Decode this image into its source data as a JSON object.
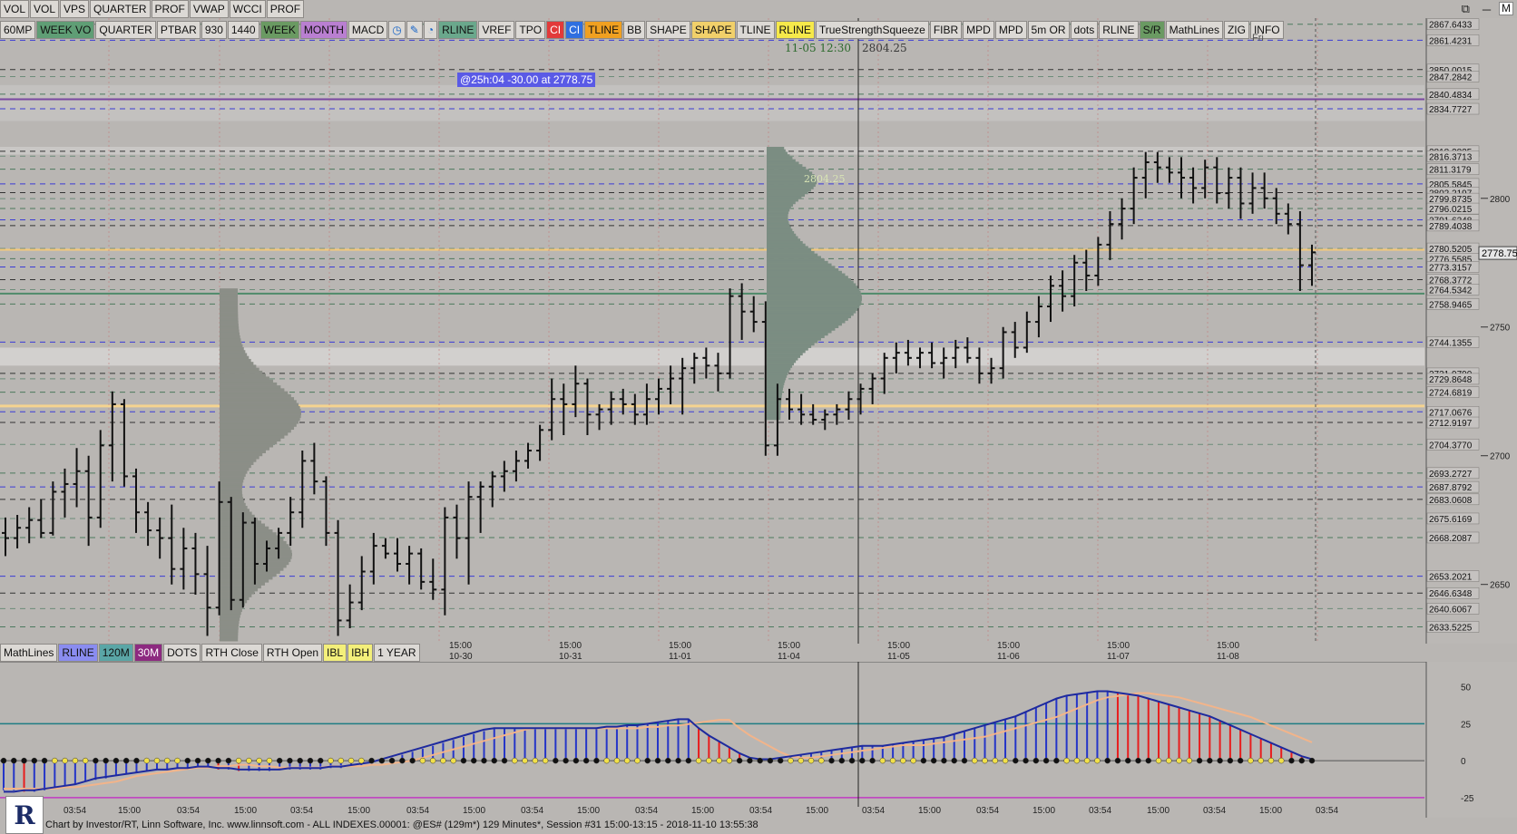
{
  "window_controls": [
    "⧉",
    "─",
    "✕"
  ],
  "toolbar1": [
    {
      "label": "VOL",
      "color": "#dcd9d5"
    },
    {
      "label": "VOL",
      "color": "#dcd9d5"
    },
    {
      "label": "VPS",
      "color": "#dcd9d5"
    },
    {
      "label": "QUARTER",
      "color": "#dcd9d5"
    },
    {
      "label": "PROF",
      "color": "#dcd9d5"
    },
    {
      "label": "VWAP",
      "color": "#dcd9d5"
    },
    {
      "label": "WCCI",
      "color": "#dcd9d5"
    },
    {
      "label": "PROF",
      "color": "#dcd9d5"
    }
  ],
  "toolbar2": [
    {
      "label": "60MP",
      "color": "#dcd9d5"
    },
    {
      "label": "WEEK VO",
      "color": "#5f9e75"
    },
    {
      "label": "QUARTER",
      "color": "#dcd9d5"
    },
    {
      "label": "PTBAR",
      "color": "#dcd9d5"
    },
    {
      "label": "930",
      "color": "#dcd9d5"
    },
    {
      "label": "1440",
      "color": "#dcd9d5"
    },
    {
      "label": "WEEK",
      "color": "#6a9a62"
    },
    {
      "label": "MONTH",
      "color": "#b97fd1"
    },
    {
      "label": "MACD",
      "color": "#dcd9d5"
    },
    {
      "label": "◷",
      "color": "#dcd9d5",
      "fg": "#1563c7"
    },
    {
      "label": "✎",
      "color": "#dcd9d5",
      "fg": "#1563c7"
    },
    {
      "label": "◔",
      "color": "#dcd9d5",
      "fg": "#1563c7"
    },
    {
      "label": "RLINE",
      "color": "#6aa88c"
    },
    {
      "label": "VREF",
      "color": "#dcd9d5"
    },
    {
      "label": "TPO",
      "color": "#dcd9d5"
    },
    {
      "label": "CI",
      "color": "#e23a3a",
      "fg": "#fff"
    },
    {
      "label": "CI",
      "color": "#2f6fe0",
      "fg": "#fff"
    },
    {
      "label": "TLINE",
      "color": "#f0a020"
    },
    {
      "label": "BB",
      "color": "#dcd9d5"
    },
    {
      "label": "SHAPE",
      "color": "#dcd9d5"
    },
    {
      "label": "SHAPE",
      "color": "#f1d06a"
    },
    {
      "label": "TLINE",
      "color": "#dcd9d5"
    },
    {
      "label": "RLINE",
      "color": "#f6e94a"
    },
    {
      "label": "TrueStrengthSqueeze",
      "color": "#dcd9d5"
    },
    {
      "label": "FIBR",
      "color": "#dcd9d5"
    },
    {
      "label": "MPD",
      "color": "#dcd9d5"
    },
    {
      "label": "MPD",
      "color": "#dcd9d5"
    },
    {
      "label": "5m OR",
      "color": "#dcd9d5"
    },
    {
      "label": "dots",
      "color": "#dcd9d5"
    },
    {
      "label": "RLINE",
      "color": "#dcd9d5"
    },
    {
      "label": "S/R",
      "color": "#6a9a62"
    },
    {
      "label": "MathLines",
      "color": "#dcd9d5"
    },
    {
      "label": "ZIG",
      "color": "#dcd9d5"
    },
    {
      "label": "INFO",
      "color": "#dcd9d5"
    }
  ],
  "toolbar3": [
    {
      "label": "MathLines",
      "color": "#dcd9d5"
    },
    {
      "label": "RLINE",
      "color": "#8a8cf0"
    },
    {
      "label": "120M",
      "color": "#5aa6a6"
    },
    {
      "label": "30M",
      "color": "#8d2a80",
      "fg": "#fff"
    },
    {
      "label": "DOTS",
      "color": "#dcd9d5"
    },
    {
      "label": "RTH Close",
      "color": "#dcd9d5"
    },
    {
      "label": "RTH Open",
      "color": "#dcd9d5"
    },
    {
      "label": "IBL",
      "color": "#f3ef7a"
    },
    {
      "label": "IBH",
      "color": "#f3ef7a"
    },
    {
      "label": "1 YEAR",
      "color": "#dcd9d5"
    }
  ],
  "cursor_stamp": {
    "date": "11-05 12:30",
    "price": "2804.25"
  },
  "profile_poc_label": "2804.25",
  "annotation": "@25h:04  -30.00 at 2778.75",
  "current_price": "2778.75",
  "day_label": "Fri",
  "pane_tags": [
    "M",
    "M"
  ],
  "footer": "Chart by Investor/RT, Linn Software, Inc. www.linnsoft.com - ALL INDEXES.00001: @ES# (129m*) 129 Minutes*, Session #31 15:00-13:15 - 2018-11-10 13:55:38",
  "logo_text": "R",
  "chart_data": [
    {
      "type": "candlestick",
      "title": "@ES# 129 Minutes",
      "y_axis_ticks": [
        2650,
        2700,
        2750,
        2800
      ],
      "ylim": [
        2627,
        2870
      ],
      "price_level_labels": [
        "2867.6433",
        "2861.4231",
        "2850.0015",
        "2847.2842",
        "2840.4834",
        "2834.7727",
        "2818.2825",
        "2816.3713",
        "2811.3179",
        "2805.5845",
        "2802.2197",
        "2799.8735",
        "2796.0215",
        "2791.6248",
        "2789.4038",
        "2780.5205",
        "2776.5585",
        "2773.3157",
        "2768.3772",
        "2764.5342",
        "2758.9465",
        "2744.1355",
        "2731.9790",
        "2729.8648",
        "2724.6819",
        "2717.0676",
        "2712.9197",
        "2704.3770",
        "2693.2727",
        "2687.8792",
        "2683.0608",
        "2675.6169",
        "2668.2087",
        "2653.2021",
        "2646.6348",
        "2640.6067",
        "2633.5225"
      ],
      "x_axis_labels": [
        {
          "time": "15:00",
          "date": "10-30"
        },
        {
          "time": "15:00",
          "date": "10-31"
        },
        {
          "time": "15:00",
          "date": "11-01"
        },
        {
          "time": "15:00",
          "date": "11-04"
        },
        {
          "time": "15:00",
          "date": "11-05"
        },
        {
          "time": "15:00",
          "date": "11-06"
        },
        {
          "time": "15:00",
          "date": "11-07"
        },
        {
          "time": "15:00",
          "date": "11-08"
        }
      ],
      "ohlc": [
        [
          2670,
          2676,
          2661,
          2668
        ],
        [
          2668,
          2677,
          2664,
          2672
        ],
        [
          2672,
          2680,
          2666,
          2675
        ],
        [
          2675,
          2683,
          2668,
          2670
        ],
        [
          2670,
          2690,
          2669,
          2686
        ],
        [
          2686,
          2695,
          2676,
          2689
        ],
        [
          2689,
          2703,
          2680,
          2694
        ],
        [
          2694,
          2700,
          2665,
          2676
        ],
        [
          2676,
          2710,
          2672,
          2704
        ],
        [
          2704,
          2725,
          2690,
          2720
        ],
        [
          2720,
          2722,
          2688,
          2692
        ],
        [
          2692,
          2695,
          2670,
          2678
        ],
        [
          2678,
          2682,
          2665,
          2671
        ],
        [
          2671,
          2676,
          2660,
          2668
        ],
        [
          2668,
          2681,
          2650,
          2656
        ],
        [
          2656,
          2672,
          2648,
          2664
        ],
        [
          2664,
          2670,
          2646,
          2654
        ],
        [
          2654,
          2665,
          2630,
          2641
        ],
        [
          2641,
          2690,
          2638,
          2682
        ],
        [
          2682,
          2684,
          2640,
          2644
        ],
        [
          2644,
          2678,
          2641,
          2674
        ],
        [
          2674,
          2676,
          2650,
          2658
        ],
        [
          2658,
          2667,
          2655,
          2664
        ],
        [
          2664,
          2672,
          2660,
          2670
        ],
        [
          2670,
          2684,
          2665,
          2678
        ],
        [
          2678,
          2702,
          2672,
          2698
        ],
        [
          2698,
          2705,
          2685,
          2690
        ],
        [
          2690,
          2692,
          2665,
          2670
        ],
        [
          2670,
          2675,
          2630,
          2636
        ],
        [
          2636,
          2650,
          2633,
          2643
        ],
        [
          2643,
          2661,
          2640,
          2655
        ],
        [
          2655,
          2670,
          2650,
          2665
        ],
        [
          2665,
          2668,
          2660,
          2662
        ],
        [
          2662,
          2668,
          2655,
          2658
        ],
        [
          2658,
          2665,
          2650,
          2662
        ],
        [
          2662,
          2664,
          2648,
          2651
        ],
        [
          2651,
          2660,
          2644,
          2648
        ],
        [
          2648,
          2680,
          2638,
          2676
        ],
        [
          2676,
          2681,
          2660,
          2668
        ],
        [
          2668,
          2690,
          2650,
          2684
        ],
        [
          2684,
          2690,
          2670,
          2688
        ],
        [
          2688,
          2694,
          2680,
          2692
        ],
        [
          2692,
          2698,
          2686,
          2694
        ],
        [
          2694,
          2702,
          2690,
          2698
        ],
        [
          2698,
          2705,
          2695,
          2702
        ],
        [
          2702,
          2712,
          2698,
          2710
        ],
        [
          2710,
          2730,
          2706,
          2722
        ],
        [
          2722,
          2728,
          2708,
          2720
        ],
        [
          2720,
          2735,
          2715,
          2728
        ],
        [
          2728,
          2730,
          2708,
          2716
        ],
        [
          2716,
          2720,
          2710,
          2718
        ],
        [
          2718,
          2725,
          2712,
          2722
        ],
        [
          2722,
          2726,
          2716,
          2720
        ],
        [
          2720,
          2724,
          2712,
          2716
        ],
        [
          2716,
          2728,
          2712,
          2722
        ],
        [
          2722,
          2730,
          2716,
          2726
        ],
        [
          2726,
          2735,
          2720,
          2730
        ],
        [
          2730,
          2738,
          2716,
          2734
        ],
        [
          2734,
          2740,
          2728,
          2738
        ],
        [
          2738,
          2742,
          2730,
          2735
        ],
        [
          2735,
          2740,
          2725,
          2732
        ],
        [
          2732,
          2765,
          2730,
          2762
        ],
        [
          2762,
          2767,
          2745,
          2756
        ],
        [
          2756,
          2762,
          2748,
          2752
        ],
        [
          2752,
          2760,
          2700,
          2704
        ],
        [
          2704,
          2728,
          2700,
          2722
        ],
        [
          2722,
          2726,
          2714,
          2718
        ],
        [
          2718,
          2724,
          2712,
          2716
        ],
        [
          2716,
          2720,
          2712,
          2714
        ],
        [
          2714,
          2718,
          2710,
          2716
        ],
        [
          2716,
          2720,
          2712,
          2718
        ],
        [
          2718,
          2725,
          2714,
          2722
        ],
        [
          2722,
          2728,
          2716,
          2726
        ],
        [
          2726,
          2732,
          2720,
          2730
        ],
        [
          2730,
          2740,
          2724,
          2738
        ],
        [
          2738,
          2744,
          2732,
          2740
        ],
        [
          2740,
          2745,
          2735,
          2738
        ],
        [
          2738,
          2742,
          2734,
          2740
        ],
        [
          2740,
          2744,
          2734,
          2736
        ],
        [
          2736,
          2742,
          2730,
          2738
        ],
        [
          2738,
          2745,
          2734,
          2742
        ],
        [
          2742,
          2746,
          2736,
          2738
        ],
        [
          2738,
          2742,
          2728,
          2732
        ],
        [
          2732,
          2738,
          2728,
          2734
        ],
        [
          2734,
          2750,
          2730,
          2748
        ],
        [
          2748,
          2752,
          2738,
          2742
        ],
        [
          2742,
          2756,
          2740,
          2752
        ],
        [
          2752,
          2762,
          2746,
          2758
        ],
        [
          2758,
          2770,
          2752,
          2766
        ],
        [
          2766,
          2772,
          2756,
          2762
        ],
        [
          2762,
          2778,
          2758,
          2775
        ],
        [
          2775,
          2780,
          2764,
          2770
        ],
        [
          2770,
          2785,
          2766,
          2782
        ],
        [
          2782,
          2795,
          2776,
          2790
        ],
        [
          2790,
          2800,
          2784,
          2796
        ],
        [
          2796,
          2812,
          2790,
          2808
        ],
        [
          2808,
          2818,
          2800,
          2814
        ],
        [
          2814,
          2818,
          2806,
          2812
        ],
        [
          2812,
          2816,
          2806,
          2810
        ],
        [
          2810,
          2816,
          2800,
          2808
        ],
        [
          2808,
          2812,
          2798,
          2804
        ],
        [
          2804,
          2815,
          2800,
          2812
        ],
        [
          2812,
          2816,
          2798,
          2802
        ],
        [
          2802,
          2812,
          2796,
          2808
        ],
        [
          2808,
          2812,
          2792,
          2798
        ],
        [
          2798,
          2810,
          2794,
          2804
        ],
        [
          2804,
          2810,
          2796,
          2800
        ],
        [
          2800,
          2804,
          2790,
          2794
        ],
        [
          2794,
          2798,
          2786,
          2790
        ],
        [
          2790,
          2795,
          2764,
          2774
        ],
        [
          2774,
          2782,
          2766,
          2779
        ]
      ]
    },
    {
      "type": "histogram",
      "title": "MACD",
      "y_axis_ticks": [
        50,
        25,
        0,
        -25
      ],
      "ylim": [
        -30,
        62
      ],
      "x_axis_labels": [
        "03:54",
        "15:00",
        "03:54",
        "15:00",
        "03:54",
        "15:00",
        "03:54",
        "15:00",
        "03:54",
        "15:00",
        "03:54",
        "15:00",
        "03:54",
        "15:00",
        "03:54",
        "15:00",
        "03:54",
        "15:00",
        "03:54",
        "15:00",
        "03:54",
        "15:00",
        "03:54",
        "15:00",
        "03:54"
      ],
      "values": [
        -20,
        -20,
        -21,
        -21,
        -20,
        -19,
        -18,
        -16,
        -14,
        -13,
        -12,
        -10,
        -9,
        -8,
        -7,
        -6,
        -6,
        -5,
        -5,
        -5,
        -5,
        -6,
        -6,
        -7,
        -7,
        -7,
        -7,
        -6,
        -6,
        -6,
        -6,
        -6,
        -5,
        -5,
        -4,
        -3,
        -2,
        0,
        2,
        4,
        6,
        8,
        10,
        12,
        14,
        16,
        18,
        20,
        22,
        22,
        22,
        22,
        22,
        22,
        22,
        22,
        22,
        22,
        22,
        23,
        23,
        24,
        24,
        25,
        26,
        27,
        28,
        28,
        22,
        17,
        13,
        9,
        5,
        2,
        1,
        1,
        2,
        3,
        4,
        5,
        6,
        7,
        8,
        9,
        10,
        10,
        10,
        11,
        12,
        13,
        14,
        15,
        16,
        18,
        20,
        22,
        24,
        26,
        28,
        30,
        33,
        36,
        39,
        42,
        44,
        45,
        46,
        47,
        47,
        46,
        45,
        44,
        42,
        40,
        38,
        36,
        34,
        32,
        30,
        27,
        24,
        21,
        18,
        15,
        12,
        9,
        6,
        3,
        1
      ],
      "macd": [
        -21,
        -21,
        -20,
        -20,
        -19,
        -18,
        -17,
        -16,
        -14,
        -12,
        -11,
        -10,
        -9,
        -8,
        -7,
        -6,
        -6,
        -5,
        -5,
        -4,
        -4,
        -5,
        -5,
        -6,
        -6,
        -6,
        -6,
        -6,
        -5,
        -5,
        -5,
        -5,
        -4,
        -4,
        -3,
        -2,
        -1,
        1,
        3,
        5,
        7,
        9,
        11,
        13,
        15,
        17,
        19,
        21,
        22,
        22,
        22,
        22,
        22,
        22,
        22,
        22,
        22,
        22,
        22,
        23,
        23,
        24,
        24,
        25,
        26,
        27,
        28,
        28,
        22,
        17,
        13,
        9,
        5,
        2,
        1,
        1,
        2,
        3,
        4,
        5,
        6,
        7,
        8,
        9,
        10,
        10,
        10,
        11,
        12,
        13,
        14,
        15,
        16,
        18,
        20,
        22,
        24,
        26,
        28,
        30,
        33,
        36,
        39,
        42,
        44,
        45,
        46,
        47,
        47,
        46,
        45,
        44,
        42,
        40,
        38,
        36,
        34,
        32,
        30,
        27,
        24,
        21,
        18,
        15,
        12,
        9,
        6,
        3,
        1
      ],
      "colors": {
        "up": "#2535c8",
        "down": "#e81d1d",
        "signal": "#f2b48a",
        "band": "#1e7d83"
      }
    }
  ]
}
